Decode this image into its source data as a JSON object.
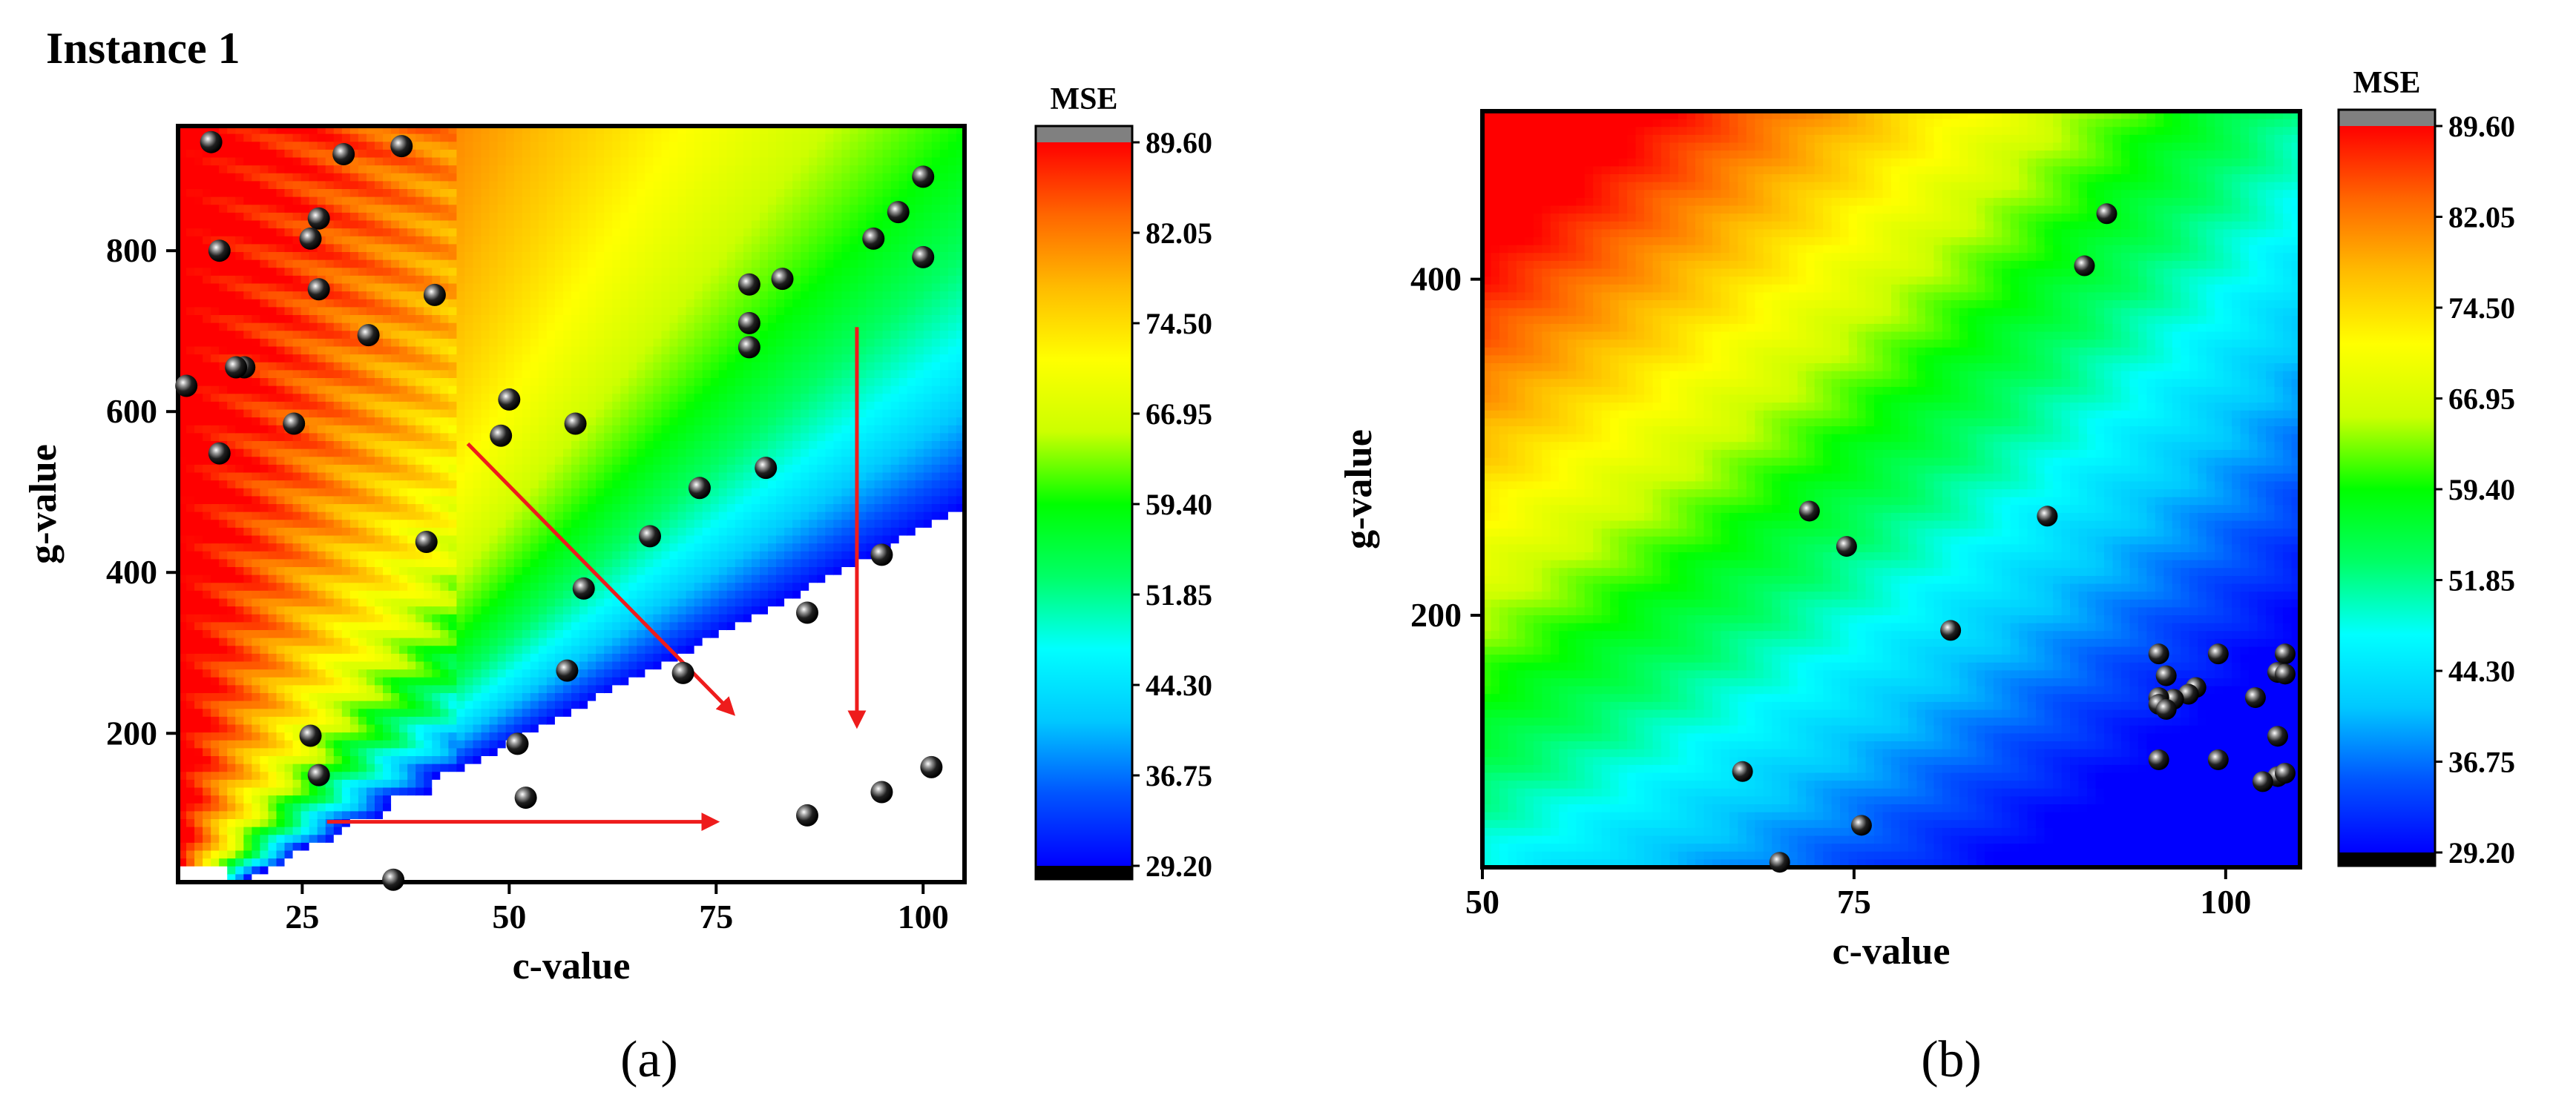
{
  "figure": {
    "instance_title": "Instance 1",
    "caption_a": "(a)",
    "caption_b": "(b)"
  },
  "colorbar": {
    "title": "MSE",
    "ticks": [
      "89.60",
      "82.05",
      "74.50",
      "66.95",
      "59.40",
      "51.85",
      "44.30",
      "36.75",
      "29.20"
    ],
    "min": 29.2,
    "max": 89.6,
    "colors": {
      "over": "#808080",
      "under": "#000000",
      "gradient": [
        "#0000ff",
        "#0055ff",
        "#00c8ff",
        "#00ffff",
        "#00ff66",
        "#00ff00",
        "#ccff00",
        "#ffff00",
        "#ffbb00",
        "#ff6600",
        "#ff0000"
      ]
    }
  },
  "chart_data": [
    {
      "type": "contour",
      "panel": "a",
      "title": "",
      "xlabel": "c-value",
      "ylabel": "g-value",
      "xlim": [
        10,
        105
      ],
      "ylim": [
        15,
        955
      ],
      "xticks": [
        "25",
        "50",
        "75",
        "100"
      ],
      "yticks": [
        "200",
        "400",
        "600",
        "800"
      ],
      "colorbar": "MSE",
      "points": [
        [
          14,
          935
        ],
        [
          30,
          920
        ],
        [
          37,
          930
        ],
        [
          100,
          892
        ],
        [
          97,
          848
        ],
        [
          27,
          840
        ],
        [
          26,
          815
        ],
        [
          15,
          800
        ],
        [
          94,
          815
        ],
        [
          100,
          792
        ],
        [
          27,
          752
        ],
        [
          41,
          745
        ],
        [
          79,
          758
        ],
        [
          83,
          765
        ],
        [
          33,
          695
        ],
        [
          79,
          710
        ],
        [
          79,
          680
        ],
        [
          18,
          655
        ],
        [
          17,
          655
        ],
        [
          11,
          632
        ],
        [
          50,
          615
        ],
        [
          24,
          585
        ],
        [
          58,
          585
        ],
        [
          49,
          570
        ],
        [
          15,
          548
        ],
        [
          81,
          530
        ],
        [
          73,
          505
        ],
        [
          67,
          445
        ],
        [
          40,
          438
        ],
        [
          95,
          422
        ],
        [
          59,
          380
        ],
        [
          86,
          350
        ],
        [
          57,
          278
        ],
        [
          71,
          275
        ],
        [
          26,
          197
        ],
        [
          51,
          187
        ],
        [
          101,
          158
        ],
        [
          27,
          148
        ],
        [
          95,
          127
        ],
        [
          52,
          120
        ],
        [
          86,
          98
        ],
        [
          36,
          18
        ]
      ],
      "arrows": [
        {
          "from": [
            45,
            560
          ],
          "to": [
            77,
            225
          ]
        },
        {
          "from": [
            92,
            705
          ],
          "to": [
            92,
            210
          ]
        },
        {
          "from": [
            28,
            90
          ],
          "to": [
            75,
            90
          ]
        }
      ]
    },
    {
      "type": "contour",
      "panel": "b",
      "title": "",
      "xlabel": "c-value",
      "ylabel": "g-value",
      "xlim": [
        50,
        105
      ],
      "ylim": [
        50,
        500
      ],
      "xticks": [
        "50",
        "75",
        "100"
      ],
      "yticks": [
        "200",
        "400"
      ],
      "colorbar": "MSE",
      "points": [
        [
          92,
          439
        ],
        [
          90.5,
          408
        ],
        [
          72,
          262
        ],
        [
          88,
          259
        ],
        [
          74.5,
          241
        ],
        [
          81.5,
          191
        ],
        [
          95.5,
          177
        ],
        [
          99.5,
          177
        ],
        [
          104,
          177
        ],
        [
          96,
          164
        ],
        [
          103.5,
          166
        ],
        [
          104,
          165
        ],
        [
          98,
          157
        ],
        [
          97.5,
          153
        ],
        [
          96.5,
          150
        ],
        [
          95.5,
          151
        ],
        [
          95.5,
          147
        ],
        [
          96,
          144
        ],
        [
          102,
          151
        ],
        [
          103.5,
          128
        ],
        [
          95.5,
          114
        ],
        [
          99.5,
          114
        ],
        [
          67.5,
          107
        ],
        [
          103.5,
          104
        ],
        [
          104,
          106
        ],
        [
          102.5,
          101
        ],
        [
          75.5,
          75
        ],
        [
          70,
          53
        ]
      ]
    }
  ]
}
